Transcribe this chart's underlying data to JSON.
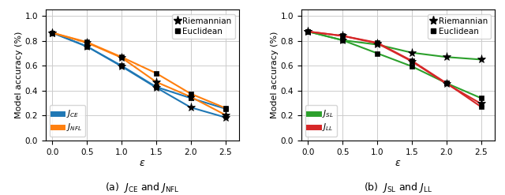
{
  "x": [
    0.0,
    0.5,
    1.0,
    1.5,
    2.0,
    2.5
  ],
  "plot1": {
    "caption": "(a)  $J_{\\mathrm{CE}}$ and $J_{\\mathrm{NFL}}$",
    "ylabel": "Model accuracy (%)",
    "xlabel": "$\\varepsilon$",
    "ylim": [
      0.0,
      1.05
    ],
    "xlim": [
      -0.1,
      2.7
    ],
    "series": {
      "JCE_riemann": [
        0.865,
        0.755,
        0.595,
        0.425,
        0.265,
        0.185
      ],
      "JCE_euclid": [
        0.865,
        0.755,
        0.6,
        0.43,
        0.34,
        0.255
      ],
      "JNFL_riemann": [
        0.865,
        0.785,
        0.665,
        0.47,
        0.35,
        0.205
      ],
      "JNFL_euclid": [
        0.865,
        0.79,
        0.67,
        0.54,
        0.375,
        0.26
      ]
    },
    "colors": {
      "JCE": "#1f77b4",
      "JNFL": "#ff7f0e"
    },
    "legend_lines": [
      {
        "label": "$J_{CE}$",
        "color": "#1f77b4"
      },
      {
        "label": "$J_{NFL}$",
        "color": "#ff7f0e"
      }
    ]
  },
  "plot2": {
    "caption": "(b)  $J_{\\mathrm{SL}}$ and $J_{\\mathrm{LL}}$",
    "ylabel": "Model accuracy (%)",
    "xlabel": "$\\varepsilon$",
    "ylim": [
      0.0,
      1.05
    ],
    "xlim": [
      -0.1,
      2.7
    ],
    "series": {
      "JSL_riemann": [
        0.875,
        0.805,
        0.77,
        0.705,
        0.67,
        0.65
      ],
      "JSL_euclid": [
        0.875,
        0.805,
        0.7,
        0.595,
        0.46,
        0.34
      ],
      "JLL_riemann": [
        0.875,
        0.84,
        0.78,
        0.635,
        0.455,
        0.295
      ],
      "JLL_euclid": [
        0.875,
        0.84,
        0.785,
        0.64,
        0.46,
        0.27
      ]
    },
    "colors": {
      "JSL": "#2ca02c",
      "JLL": "#d62728"
    },
    "legend_lines": [
      {
        "label": "$J_{SL}$",
        "color": "#2ca02c"
      },
      {
        "label": "$J_{LL}$",
        "color": "#d62728"
      }
    ]
  },
  "marker_riemann": "*",
  "marker_euclid": "s",
  "marker_size_star": 8,
  "marker_size_sq": 5,
  "linewidth": 1.5,
  "grid_color": "#cccccc",
  "legend_top": [
    {
      "label": "Riemannian",
      "marker": "*"
    },
    {
      "label": "Euclidean",
      "marker": "s"
    }
  ]
}
